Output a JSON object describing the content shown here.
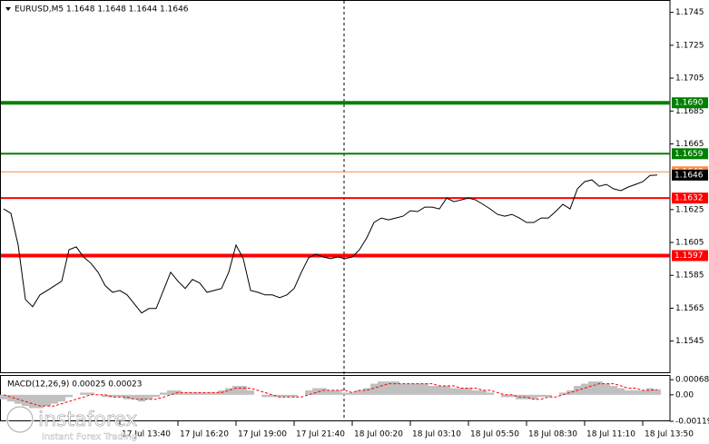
{
  "chart_data": [
    {
      "type": "line",
      "title": "EURUSD,M5  1.1648 1.1648 1.1644 1.1646",
      "xlim": [
        -0.5,
        91.75
      ],
      "ylim": [
        1.1526,
        1.1752
      ],
      "yticks": [
        1.1745,
        1.1725,
        1.1705,
        1.1685,
        1.1665,
        1.1625,
        1.1605,
        1.1585,
        1.1565,
        1.1545
      ],
      "xticks": [
        {
          "value": 16,
          "label": "17 Jul 13:40"
        },
        {
          "value": 24,
          "label": "17 Jul 16:20"
        },
        {
          "value": 32,
          "label": "17 Jul 19:00"
        },
        {
          "value": 40,
          "label": "17 Jul 21:40"
        },
        {
          "value": 48,
          "label": "18 Jul 00:20"
        },
        {
          "value": 56,
          "label": "18 Jul 03:10"
        },
        {
          "value": 64,
          "label": "18 Jul 05:50"
        },
        {
          "value": 72,
          "label": "18 Jul 08:30"
        },
        {
          "value": 80,
          "label": "18 Jul 11:10"
        },
        {
          "value": 88,
          "label": "18 Jul 13:50"
        }
      ],
      "levels": [
        {
          "value": 1.169,
          "label": "1.1690",
          "color": "#008000"
        },
        {
          "value": 1.1659,
          "color": "#008000"
        },
        {
          "value": 1.1648,
          "color": "#ff8c40"
        },
        {
          "value": 1.1632,
          "color": "#ff0000"
        },
        {
          "value": 1.1597,
          "color": "#ff0000"
        }
      ],
      "last_price": 1.1646,
      "series": [
        {
          "color": "#000000",
          "values": [
            1.16254,
            1.16227,
            1.16034,
            1.15703,
            1.15659,
            1.15731,
            1.15758,
            1.15786,
            1.15814,
            1.16006,
            1.16023,
            1.15962,
            1.15924,
            1.15869,
            1.15786,
            1.15747,
            1.15758,
            1.15731,
            1.15676,
            1.15621,
            1.15648,
            1.15648,
            1.15758,
            1.15869,
            1.15814,
            1.1577,
            1.15825,
            1.15803,
            1.15747,
            1.15758,
            1.1577,
            1.15869,
            1.16034,
            1.15951,
            1.15758,
            1.15747,
            1.15731,
            1.15731,
            1.15714,
            1.15731,
            1.1577,
            1.15869,
            1.15957,
            1.15979,
            1.15962,
            1.15951,
            1.15962,
            1.15951,
            1.15962,
            1.16006,
            1.16078,
            1.16172,
            1.16199,
            1.16188,
            1.16199,
            1.1621,
            1.16243,
            1.16238,
            1.16265,
            1.16265,
            1.16254,
            1.1632,
            1.16298,
            1.16309,
            1.1632,
            1.16309,
            1.16282,
            1.16254,
            1.16221,
            1.1621,
            1.16221,
            1.16199,
            1.16172,
            1.16172,
            1.16199,
            1.16199,
            1.16238,
            1.16282,
            1.16254,
            1.16376,
            1.1642,
            1.16431,
            1.16392,
            1.16403,
            1.16376,
            1.16365,
            1.16387,
            1.16403,
            1.1642,
            1.16458,
            1.1646
          ]
        }
      ]
    },
    {
      "type": "macd",
      "title": "MACD(12,26,9) 0.00025 0.00023",
      "xlim": [
        -0.5,
        91.75
      ],
      "ylim": [
        -0.00119,
        0.00085
      ],
      "yticks": [
        0.00068,
        {
          "value": 0,
          "label": "0.00"
        },
        -0.00119
      ],
      "series": [
        {
          "type": "bar",
          "color": "#c0c0c0",
          "values": [
            -0.0002,
            -0.0003,
            -0.0004,
            -0.0005,
            -0.0006,
            -0.0006,
            -0.0005,
            -0.0004,
            -0.0003,
            -0.0001,
            0,
            0.0001,
            0.0001,
            0,
            -0.0001,
            -0.0001,
            -0.0001,
            -0.0002,
            -0.0002,
            -0.0003,
            -0.0002,
            -0.0001,
            0.0001,
            0.0002,
            0.0002,
            0.0001,
            0.0001,
            0.0001,
            0.0001,
            0.0001,
            0.0002,
            0.0003,
            0.0004,
            0.0004,
            0.0002,
            0,
            -0.0001,
            -0.0001,
            -0.0001,
            -0.0001,
            -0.0001,
            0,
            0.0002,
            0.0003,
            0.0003,
            0.0002,
            0.0002,
            0.0001,
            0.0001,
            0.0002,
            0.0003,
            0.0005,
            0.0006,
            0.0006,
            0.0006,
            0.0005,
            0.0005,
            0.0005,
            0.0005,
            0.0004,
            0.0004,
            0.0004,
            0.0003,
            0.0003,
            0.0003,
            0.0002,
            0.0002,
            0.0001,
            0,
            -0.0001,
            -0.0001,
            -0.0002,
            -0.0002,
            -0.0002,
            -0.0001,
            -0.0001,
            0,
            0.0001,
            0.0002,
            0.0004,
            0.0005,
            0.0006,
            0.0006,
            0.0005,
            0.0004,
            0.0003,
            0.0002,
            0.0002,
            0.0002,
            0.0003,
            0.00025
          ]
        },
        {
          "type": "line",
          "color": "#ff0000",
          "values": [
            0,
            -0.0001,
            -0.0002,
            -0.0003,
            -0.0004,
            -0.0005,
            -0.0005,
            -0.0005,
            -0.0004,
            -0.0003,
            -0.0002,
            -0.0001,
            0,
            0,
            0,
            -0.0001,
            -0.0001,
            -0.0001,
            -0.0002,
            -0.0002,
            -0.0002,
            -0.0002,
            -0.0001,
            0,
            0.0001,
            0.0001,
            0.0001,
            0.0001,
            0.0001,
            0.0001,
            0.0001,
            0.0002,
            0.0003,
            0.0003,
            0.0003,
            0.0002,
            0.0001,
            0,
            -0.0001,
            -0.0001,
            -0.0001,
            -0.0001,
            0,
            0.0001,
            0.0002,
            0.0002,
            0.0002,
            0.0002,
            0.0001,
            0.0002,
            0.0002,
            0.0003,
            0.0004,
            0.0005,
            0.0005,
            0.0005,
            0.0005,
            0.0005,
            0.0005,
            0.0005,
            0.0004,
            0.0004,
            0.0004,
            0.0003,
            0.0003,
            0.0003,
            0.0002,
            0.0002,
            0.0001,
            0,
            0,
            -0.0001,
            -0.0001,
            -0.0002,
            -0.0002,
            -0.0001,
            -0.0001,
            0,
            0.0001,
            0.0002,
            0.0003,
            0.0004,
            0.0005,
            0.0005,
            0.0005,
            0.0004,
            0.0003,
            0.0003,
            0.0002,
            0.0002,
            0.00023
          ]
        }
      ]
    }
  ],
  "watermark": {
    "brand": "instaforex",
    "tagline": "Instant Forex Trading"
  }
}
